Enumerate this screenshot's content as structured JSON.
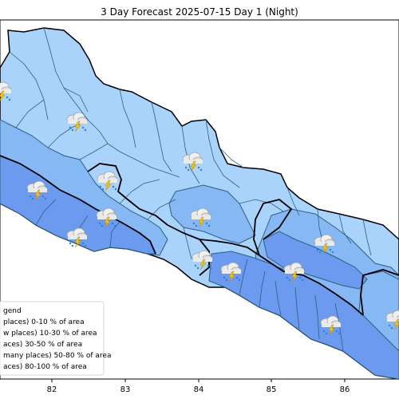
{
  "title": "3 Day Forecast 2025-07-15 Day 1 (Night)",
  "x_ticks": [
    "82",
    "83",
    "84",
    "85",
    "86"
  ],
  "legend": {
    "title": "gend",
    "items": [
      {
        "label": "places)  0-10 % of area",
        "color": "#ffffff"
      },
      {
        "label": "w places) 10-30 % of area",
        "color": "#cfe6fb"
      },
      {
        "label": "aces) 30-50  % of area",
        "color": "#a9d3fb"
      },
      {
        "label": "many places) 50-80 % of area",
        "color": "#86b8f3"
      },
      {
        "label": "aces) 80-100 % of area",
        "color": "#6b9aef"
      }
    ]
  },
  "colors": {
    "light": "#a9d3fb",
    "medium": "#86b8f3",
    "dark": "#6b9aef",
    "boundary": "#2f5e84",
    "province": "#000000"
  },
  "icon_name": "thunderstorm-rain-icon"
}
